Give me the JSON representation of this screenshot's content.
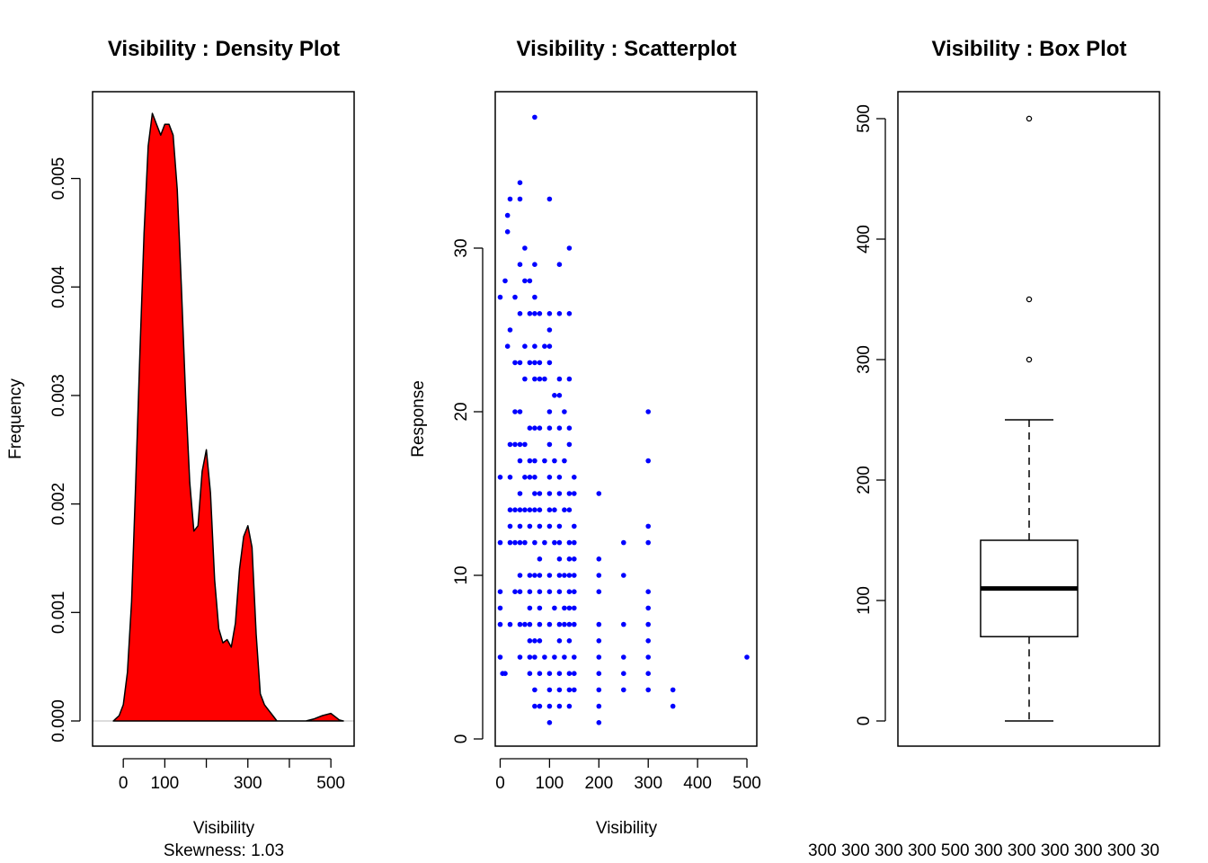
{
  "chart_data": [
    {
      "type": "area",
      "title": "Visibility : Density Plot",
      "xlabel": "Visibility",
      "ylabel": "Frequency",
      "sub": "Skewness:  1.03",
      "fill_color": "#ff0000",
      "xlim": [
        -74,
        556
      ],
      "ylim": [
        0,
        0.0056
      ],
      "xticks": [
        0,
        100,
        200,
        300,
        400,
        500
      ],
      "xtick_labels": [
        "0",
        "100",
        "",
        "300",
        "",
        "500"
      ],
      "yticks": [
        0.0,
        0.001,
        0.002,
        0.003,
        0.004,
        0.005
      ],
      "ytick_labels": [
        "0.000",
        "0.001",
        "0.002",
        "0.003",
        "0.004",
        "0.005"
      ],
      "x": [
        -24,
        -10,
        0,
        10,
        20,
        30,
        40,
        50,
        60,
        70,
        80,
        90,
        100,
        110,
        120,
        130,
        140,
        150,
        160,
        170,
        180,
        190,
        200,
        210,
        220,
        230,
        240,
        250,
        260,
        270,
        280,
        290,
        300,
        310,
        320,
        330,
        340,
        350,
        360,
        370,
        380,
        400,
        420,
        440,
        460,
        480,
        500,
        510,
        520,
        530
      ],
      "y": [
        0.0,
        5e-05,
        0.00015,
        0.00045,
        0.0011,
        0.0022,
        0.0034,
        0.0045,
        0.0053,
        0.0056,
        0.0055,
        0.0054,
        0.0055,
        0.0055,
        0.0054,
        0.0049,
        0.004,
        0.003,
        0.0022,
        0.00175,
        0.0018,
        0.0023,
        0.0025,
        0.0021,
        0.0013,
        0.00085,
        0.00072,
        0.00075,
        0.00068,
        0.0009,
        0.0014,
        0.0017,
        0.0018,
        0.0016,
        0.0008,
        0.00025,
        0.00015,
        0.0001,
        5e-05,
        0.0,
        0.0,
        0.0,
        0.0,
        0.0,
        2e-05,
        5e-05,
        7e-05,
        4e-05,
        1e-05,
        0.0
      ]
    },
    {
      "type": "scatter",
      "title": "Visibility : Scatterplot",
      "xlabel": "Visibility",
      "ylabel": "Response",
      "point_color": "#0000ff",
      "xlim": [
        -10,
        520
      ],
      "ylim": [
        -0.5,
        38.9
      ],
      "xticks": [
        0,
        100,
        200,
        300,
        400,
        500
      ],
      "xtick_labels": [
        "0",
        "100",
        "200",
        "300",
        "400",
        "500"
      ],
      "yticks": [
        0,
        10,
        20,
        30
      ],
      "ytick_labels": [
        "0",
        "10",
        "20",
        "30"
      ],
      "points": [
        [
          70,
          38
        ],
        [
          40,
          34
        ],
        [
          20,
          33
        ],
        [
          40,
          33
        ],
        [
          100,
          33
        ],
        [
          15,
          32
        ],
        [
          15,
          31
        ],
        [
          50,
          30
        ],
        [
          140,
          30
        ],
        [
          40,
          29
        ],
        [
          70,
          29
        ],
        [
          120,
          29
        ],
        [
          10,
          28
        ],
        [
          50,
          28
        ],
        [
          60,
          28
        ],
        [
          0,
          27
        ],
        [
          30,
          27
        ],
        [
          70,
          27
        ],
        [
          40,
          26
        ],
        [
          60,
          26
        ],
        [
          70,
          26
        ],
        [
          80,
          26
        ],
        [
          100,
          26
        ],
        [
          120,
          26
        ],
        [
          140,
          26
        ],
        [
          20,
          25
        ],
        [
          100,
          25
        ],
        [
          15,
          24
        ],
        [
          50,
          24
        ],
        [
          70,
          24
        ],
        [
          90,
          24
        ],
        [
          100,
          24
        ],
        [
          30,
          23
        ],
        [
          40,
          23
        ],
        [
          60,
          23
        ],
        [
          70,
          23
        ],
        [
          80,
          23
        ],
        [
          100,
          23
        ],
        [
          50,
          22
        ],
        [
          70,
          22
        ],
        [
          80,
          22
        ],
        [
          90,
          22
        ],
        [
          120,
          22
        ],
        [
          140,
          22
        ],
        [
          110,
          21
        ],
        [
          120,
          21
        ],
        [
          100,
          20
        ],
        [
          30,
          20
        ],
        [
          40,
          20
        ],
        [
          130,
          20
        ],
        [
          300,
          20
        ],
        [
          60,
          19
        ],
        [
          70,
          19
        ],
        [
          80,
          19
        ],
        [
          100,
          19
        ],
        [
          120,
          19
        ],
        [
          140,
          19
        ],
        [
          20,
          18
        ],
        [
          30,
          18
        ],
        [
          40,
          18
        ],
        [
          50,
          18
        ],
        [
          100,
          18
        ],
        [
          140,
          18
        ],
        [
          40,
          17
        ],
        [
          60,
          17
        ],
        [
          70,
          17
        ],
        [
          90,
          17
        ],
        [
          110,
          17
        ],
        [
          130,
          17
        ],
        [
          300,
          17
        ],
        [
          0,
          16
        ],
        [
          20,
          16
        ],
        [
          50,
          16
        ],
        [
          60,
          16
        ],
        [
          70,
          16
        ],
        [
          100,
          16
        ],
        [
          120,
          16
        ],
        [
          150,
          16
        ],
        [
          40,
          15
        ],
        [
          70,
          15
        ],
        [
          80,
          15
        ],
        [
          100,
          15
        ],
        [
          120,
          15
        ],
        [
          140,
          15
        ],
        [
          150,
          15
        ],
        [
          200,
          15
        ],
        [
          20,
          14
        ],
        [
          30,
          14
        ],
        [
          40,
          14
        ],
        [
          50,
          14
        ],
        [
          60,
          14
        ],
        [
          70,
          14
        ],
        [
          80,
          14
        ],
        [
          100,
          14
        ],
        [
          110,
          14
        ],
        [
          130,
          14
        ],
        [
          140,
          14
        ],
        [
          20,
          13
        ],
        [
          40,
          13
        ],
        [
          60,
          13
        ],
        [
          80,
          13
        ],
        [
          100,
          13
        ],
        [
          120,
          13
        ],
        [
          150,
          13
        ],
        [
          300,
          13
        ],
        [
          0,
          12
        ],
        [
          20,
          12
        ],
        [
          30,
          12
        ],
        [
          40,
          12
        ],
        [
          50,
          12
        ],
        [
          70,
          12
        ],
        [
          90,
          12
        ],
        [
          110,
          12
        ],
        [
          120,
          12
        ],
        [
          140,
          12
        ],
        [
          150,
          12
        ],
        [
          250,
          12
        ],
        [
          300,
          12
        ],
        [
          80,
          11
        ],
        [
          120,
          11
        ],
        [
          140,
          11
        ],
        [
          150,
          11
        ],
        [
          200,
          11
        ],
        [
          40,
          10
        ],
        [
          60,
          10
        ],
        [
          70,
          10
        ],
        [
          80,
          10
        ],
        [
          100,
          10
        ],
        [
          120,
          10
        ],
        [
          130,
          10
        ],
        [
          140,
          10
        ],
        [
          150,
          10
        ],
        [
          200,
          10
        ],
        [
          250,
          10
        ],
        [
          0,
          9
        ],
        [
          30,
          9
        ],
        [
          40,
          9
        ],
        [
          60,
          9
        ],
        [
          80,
          9
        ],
        [
          100,
          9
        ],
        [
          120,
          9
        ],
        [
          140,
          9
        ],
        [
          150,
          9
        ],
        [
          200,
          9
        ],
        [
          300,
          9
        ],
        [
          0,
          8
        ],
        [
          60,
          8
        ],
        [
          80,
          8
        ],
        [
          110,
          8
        ],
        [
          130,
          8
        ],
        [
          140,
          8
        ],
        [
          150,
          8
        ],
        [
          300,
          8
        ],
        [
          0,
          7
        ],
        [
          20,
          7
        ],
        [
          40,
          7
        ],
        [
          50,
          7
        ],
        [
          60,
          7
        ],
        [
          80,
          7
        ],
        [
          100,
          7
        ],
        [
          120,
          7
        ],
        [
          130,
          7
        ],
        [
          140,
          7
        ],
        [
          150,
          7
        ],
        [
          200,
          7
        ],
        [
          250,
          7
        ],
        [
          300,
          7
        ],
        [
          60,
          6
        ],
        [
          70,
          6
        ],
        [
          80,
          6
        ],
        [
          120,
          6
        ],
        [
          140,
          6
        ],
        [
          200,
          6
        ],
        [
          300,
          6
        ],
        [
          0,
          5
        ],
        [
          40,
          5
        ],
        [
          60,
          5
        ],
        [
          70,
          5
        ],
        [
          90,
          5
        ],
        [
          110,
          5
        ],
        [
          130,
          5
        ],
        [
          150,
          5
        ],
        [
          200,
          5
        ],
        [
          250,
          5
        ],
        [
          300,
          5
        ],
        [
          500,
          5
        ],
        [
          5,
          4
        ],
        [
          10,
          4
        ],
        [
          60,
          4
        ],
        [
          80,
          4
        ],
        [
          100,
          4
        ],
        [
          120,
          4
        ],
        [
          140,
          4
        ],
        [
          150,
          4
        ],
        [
          200,
          4
        ],
        [
          250,
          4
        ],
        [
          300,
          4
        ],
        [
          70,
          3
        ],
        [
          100,
          3
        ],
        [
          120,
          3
        ],
        [
          140,
          3
        ],
        [
          150,
          3
        ],
        [
          200,
          3
        ],
        [
          250,
          3
        ],
        [
          300,
          3
        ],
        [
          350,
          3
        ],
        [
          70,
          2
        ],
        [
          80,
          2
        ],
        [
          100,
          2
        ],
        [
          120,
          2
        ],
        [
          140,
          2
        ],
        [
          200,
          2
        ],
        [
          350,
          2
        ],
        [
          100,
          1
        ],
        [
          200,
          1
        ]
      ]
    },
    {
      "type": "box",
      "title": "Visibility : Box Plot",
      "ylim": [
        -20,
        520
      ],
      "yticks": [
        0,
        100,
        200,
        300,
        400,
        500
      ],
      "ytick_labels": [
        "0",
        "100",
        "200",
        "300",
        "400",
        "500"
      ],
      "whisker_low": 0,
      "q1": 70,
      "median": 110,
      "q3": 150,
      "whisker_high": 250,
      "outliers": [
        300,
        350,
        500
      ],
      "bottom_text": "300 300 300 300 500 300 300 300 300 300 30"
    }
  ]
}
